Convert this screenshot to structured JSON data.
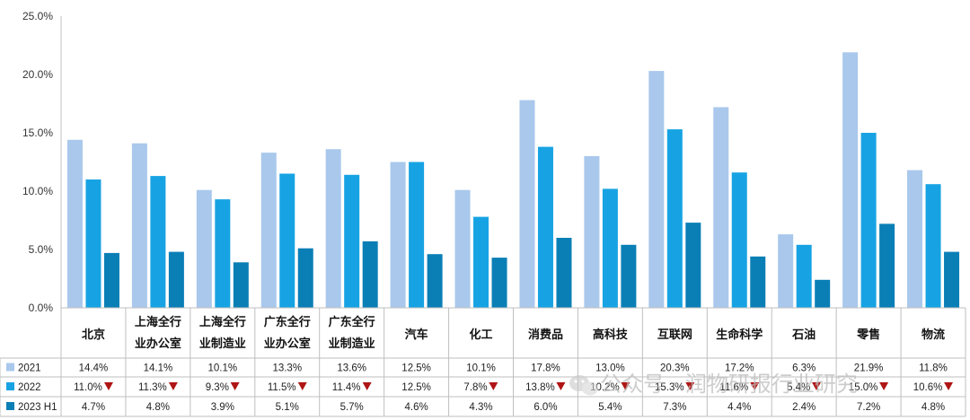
{
  "chart_data": {
    "type": "bar",
    "title": "",
    "xlabel": "",
    "ylabel": "",
    "ylim": [
      0,
      25
    ],
    "y_ticks": [
      "0.0%",
      "5.0%",
      "10.0%",
      "15.0%",
      "20.0%",
      "25.0%"
    ],
    "grid": false,
    "legend": "bottom-left (data table)",
    "categories": [
      [
        "北京"
      ],
      [
        "上海全行",
        "业办公室"
      ],
      [
        "上海全行",
        "业制造业"
      ],
      [
        "广东全行",
        "业办公室"
      ],
      [
        "广东全行",
        "业制造业"
      ],
      [
        "汽车"
      ],
      [
        "化工"
      ],
      [
        "消费品"
      ],
      [
        "高科技"
      ],
      [
        "互联网"
      ],
      [
        "生命科学"
      ],
      [
        "石油"
      ],
      [
        "零售"
      ],
      [
        "物流"
      ]
    ],
    "series": [
      {
        "name": "2021",
        "color": "#a9c8ec",
        "values": [
          14.4,
          14.1,
          10.1,
          13.3,
          13.6,
          12.5,
          10.1,
          17.8,
          13.0,
          20.3,
          17.2,
          6.3,
          21.9,
          11.8
        ],
        "labels": [
          "14.4%",
          "14.1%",
          "10.1%",
          "13.3%",
          "13.6%",
          "12.5%",
          "10.1%",
          "17.8%",
          "13.0%",
          "20.3%",
          "17.2%",
          "6.3%",
          "21.9%",
          "11.8%"
        ],
        "down": [
          false,
          false,
          false,
          false,
          false,
          false,
          false,
          false,
          false,
          false,
          false,
          false,
          false,
          false
        ]
      },
      {
        "name": "2022",
        "color": "#17a3e3",
        "values": [
          11.0,
          11.3,
          9.3,
          11.5,
          11.4,
          12.5,
          7.8,
          13.8,
          10.2,
          15.3,
          11.6,
          5.4,
          15.0,
          10.6
        ],
        "labels": [
          "11.0%",
          "11.3%",
          "9.3%",
          "11.5%",
          "11.4%",
          "12.5%",
          "7.8%",
          "13.8%",
          "10.2%",
          "15.3%",
          "11.6%",
          "5.4%",
          "15.0%",
          "10.6%"
        ],
        "down": [
          true,
          true,
          true,
          true,
          true,
          false,
          true,
          true,
          true,
          true,
          true,
          true,
          true,
          true
        ]
      },
      {
        "name": "2023 H1",
        "color": "#0a7fb6",
        "values": [
          4.7,
          4.8,
          3.9,
          5.1,
          5.7,
          4.6,
          4.3,
          6.0,
          5.4,
          7.3,
          4.4,
          2.4,
          7.2,
          4.8
        ],
        "labels": [
          "4.7%",
          "4.8%",
          "3.9%",
          "5.1%",
          "5.7%",
          "4.6%",
          "4.3%",
          "6.0%",
          "5.4%",
          "7.3%",
          "4.4%",
          "2.4%",
          "7.2%",
          "4.8%"
        ],
        "down": [
          false,
          false,
          false,
          false,
          false,
          false,
          false,
          false,
          false,
          false,
          false,
          false,
          false,
          false
        ]
      }
    ],
    "down_marker_color": "#b01515"
  },
  "watermark": {
    "icon": "wechat-icon",
    "text": "公众号 · 润物研报行业研究"
  }
}
